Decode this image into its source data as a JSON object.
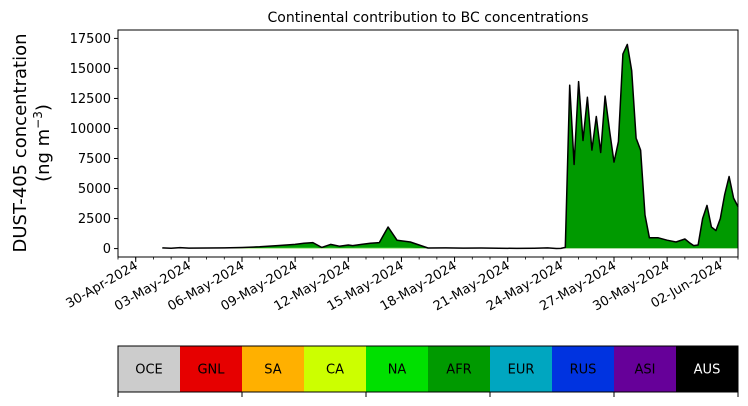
{
  "chart_data": {
    "type": "area",
    "stacked": true,
    "title": "Continental contribution to BC concentrations",
    "ylabel_line1": "DUST-405 concentration",
    "ylabel_unit_prefix": "(ng m",
    "ylabel_unit_exp": "−3",
    "ylabel_unit_suffix": ")",
    "ylim": [
      -700,
      18200
    ],
    "yticks": [
      0,
      2500,
      5000,
      7500,
      10000,
      12500,
      15000,
      17500
    ],
    "xlim": [
      "2024-04-29",
      "2024-06-03"
    ],
    "xticks": [
      "30-Apr-2024",
      "03-May-2024",
      "06-May-2024",
      "09-May-2024",
      "12-May-2024",
      "15-May-2024",
      "18-May-2024",
      "21-May-2024",
      "24-May-2024",
      "27-May-2024",
      "30-May-2024",
      "02-Jun-2024"
    ],
    "xtick_dates": [
      "2024-04-30",
      "2024-05-03",
      "2024-05-06",
      "2024-05-09",
      "2024-05-12",
      "2024-05-15",
      "2024-05-18",
      "2024-05-21",
      "2024-05-24",
      "2024-05-27",
      "2024-05-30",
      "2024-06-02"
    ],
    "grid": false,
    "colors": {
      "OCE": "#cccccc",
      "GNL": "#e60000",
      "SA": "#ffb000",
      "CA": "#ccff00",
      "NA": "#00e000",
      "AFR": "#009a00",
      "EUR": "#00a6c0",
      "RUS": "#0033e0",
      "ASI": "#660099",
      "AUS": "#000000"
    },
    "legend_order": [
      "OCE",
      "GNL",
      "SA",
      "CA",
      "NA",
      "AFR",
      "EUR",
      "RUS",
      "ASI",
      "AUS"
    ],
    "x": [
      "2024-05-01T12:00",
      "2024-05-02T00:00",
      "2024-05-02T12:00",
      "2024-05-03T00:00",
      "2024-05-04T00:00",
      "2024-05-05T00:00",
      "2024-05-06T00:00",
      "2024-05-07T00:00",
      "2024-05-08T00:00",
      "2024-05-08T12:00",
      "2024-05-09T00:00",
      "2024-05-09T12:00",
      "2024-05-10T00:00",
      "2024-05-10T12:00",
      "2024-05-11T00:00",
      "2024-05-11T12:00",
      "2024-05-12T00:00",
      "2024-05-12T06:00",
      "2024-05-12T18:00",
      "2024-05-13T06:00",
      "2024-05-13T18:00",
      "2024-05-14T06:00",
      "2024-05-14T18:00",
      "2024-05-15T12:00",
      "2024-05-16T12:00",
      "2024-05-17T12:00",
      "2024-05-18T12:00",
      "2024-05-19T12:00",
      "2024-05-20T12:00",
      "2024-05-21T12:00",
      "2024-05-22T12:00",
      "2024-05-23T06:00",
      "2024-05-23T18:00",
      "2024-05-24T00:00",
      "2024-05-24T06:00",
      "2024-05-24T12:00",
      "2024-05-24T18:00",
      "2024-05-25T00:00",
      "2024-05-25T06:00",
      "2024-05-25T12:00",
      "2024-05-25T18:00",
      "2024-05-26T00:00",
      "2024-05-26T06:00",
      "2024-05-26T12:00",
      "2024-05-26T18:00",
      "2024-05-27T00:00",
      "2024-05-27T06:00",
      "2024-05-27T12:00",
      "2024-05-27T18:00",
      "2024-05-28T00:00",
      "2024-05-28T06:00",
      "2024-05-28T12:00",
      "2024-05-28T18:00",
      "2024-05-29T00:00",
      "2024-05-29T12:00",
      "2024-05-30T00:00",
      "2024-05-30T12:00",
      "2024-05-31T00:00",
      "2024-05-31T06:00",
      "2024-05-31T12:00",
      "2024-05-31T18:00",
      "2024-06-01T00:00",
      "2024-06-01T06:00",
      "2024-06-01T12:00",
      "2024-06-01T18:00",
      "2024-06-02T00:00",
      "2024-06-02T06:00",
      "2024-06-02T12:00",
      "2024-06-02T18:00",
      "2024-06-03T00:00"
    ],
    "total": [
      60,
      30,
      80,
      40,
      50,
      60,
      90,
      150,
      250,
      300,
      350,
      450,
      500,
      100,
      350,
      200,
      300,
      250,
      350,
      450,
      500,
      1800,
      700,
      550,
      50,
      60,
      40,
      50,
      30,
      20,
      30,
      60,
      10,
      20,
      100,
      13600,
      7000,
      13900,
      9000,
      12600,
      8200,
      11000,
      8000,
      12700,
      9800,
      7200,
      8900,
      16200,
      17000,
      14800,
      9200,
      8200,
      2800,
      900,
      900,
      700,
      550,
      800,
      500,
      250,
      300,
      2500,
      3600,
      1800,
      1500,
      2500,
      4500,
      6000,
      4200,
      3500
    ],
    "series": [
      {
        "name": "OCE",
        "values": [
          5,
          5,
          5,
          5,
          5,
          5,
          5,
          5,
          5,
          5,
          5,
          5,
          5,
          5,
          5,
          5,
          5,
          5,
          5,
          5,
          5,
          5,
          5,
          5,
          5,
          5,
          5,
          5,
          5,
          5,
          5,
          5,
          5,
          5,
          5,
          5,
          5,
          5,
          5,
          5,
          5,
          5,
          5,
          5,
          5,
          5,
          5,
          5,
          5,
          5,
          5,
          5,
          5,
          5,
          5,
          5,
          5,
          5,
          5,
          5,
          5,
          5,
          5,
          5,
          5,
          5,
          5,
          5,
          5,
          5
        ]
      },
      {
        "name": "GNL",
        "values": [
          5,
          5,
          5,
          5,
          5,
          5,
          5,
          5,
          5,
          5,
          5,
          5,
          5,
          5,
          5,
          5,
          5,
          5,
          5,
          5,
          5,
          5,
          5,
          5,
          5,
          5,
          5,
          5,
          5,
          5,
          5,
          5,
          5,
          5,
          5,
          5,
          5,
          5,
          5,
          5,
          5,
          5,
          5,
          5,
          5,
          5,
          5,
          5,
          5,
          5,
          5,
          5,
          5,
          5,
          5,
          5,
          5,
          5,
          5,
          5,
          5,
          5,
          5,
          5,
          5,
          5,
          5,
          5,
          5,
          5
        ]
      },
      {
        "name": "SA",
        "values": [
          5,
          5,
          5,
          5,
          5,
          5,
          10,
          10,
          10,
          10,
          10,
          10,
          10,
          10,
          10,
          10,
          10,
          10,
          10,
          10,
          10,
          10,
          10,
          10,
          5,
          5,
          5,
          5,
          5,
          5,
          5,
          5,
          5,
          5,
          5,
          5,
          5,
          5,
          5,
          5,
          5,
          5,
          5,
          5,
          5,
          5,
          5,
          5,
          5,
          5,
          5,
          5,
          5,
          5,
          5,
          5,
          5,
          5,
          5,
          5,
          5,
          5,
          5,
          5,
          5,
          5,
          5,
          5,
          5,
          5
        ]
      },
      {
        "name": "CA",
        "values": [
          5,
          5,
          5,
          5,
          5,
          5,
          10,
          10,
          10,
          10,
          10,
          10,
          10,
          10,
          10,
          10,
          10,
          10,
          10,
          10,
          10,
          10,
          10,
          10,
          5,
          5,
          5,
          5,
          5,
          5,
          5,
          5,
          5,
          5,
          5,
          5,
          5,
          5,
          5,
          5,
          5,
          5,
          5,
          5,
          5,
          5,
          5,
          5,
          5,
          5,
          5,
          5,
          5,
          5,
          5,
          5,
          5,
          5,
          5,
          5,
          5,
          5,
          5,
          5,
          5,
          5,
          5,
          5,
          5,
          5
        ]
      },
      {
        "name": "NA",
        "values": [
          5,
          5,
          5,
          5,
          5,
          5,
          10,
          20,
          30,
          30,
          40,
          50,
          50,
          10,
          40,
          20,
          30,
          25,
          35,
          45,
          50,
          50,
          40,
          30,
          5,
          5,
          5,
          5,
          5,
          5,
          5,
          5,
          5,
          5,
          5,
          5,
          5,
          5,
          5,
          5,
          5,
          5,
          5,
          5,
          5,
          5,
          5,
          5,
          5,
          5,
          5,
          5,
          5,
          5,
          5,
          5,
          5,
          5,
          5,
          5,
          5,
          5,
          5,
          5,
          5,
          5,
          5,
          5,
          5,
          5
        ]
      }
    ]
  }
}
